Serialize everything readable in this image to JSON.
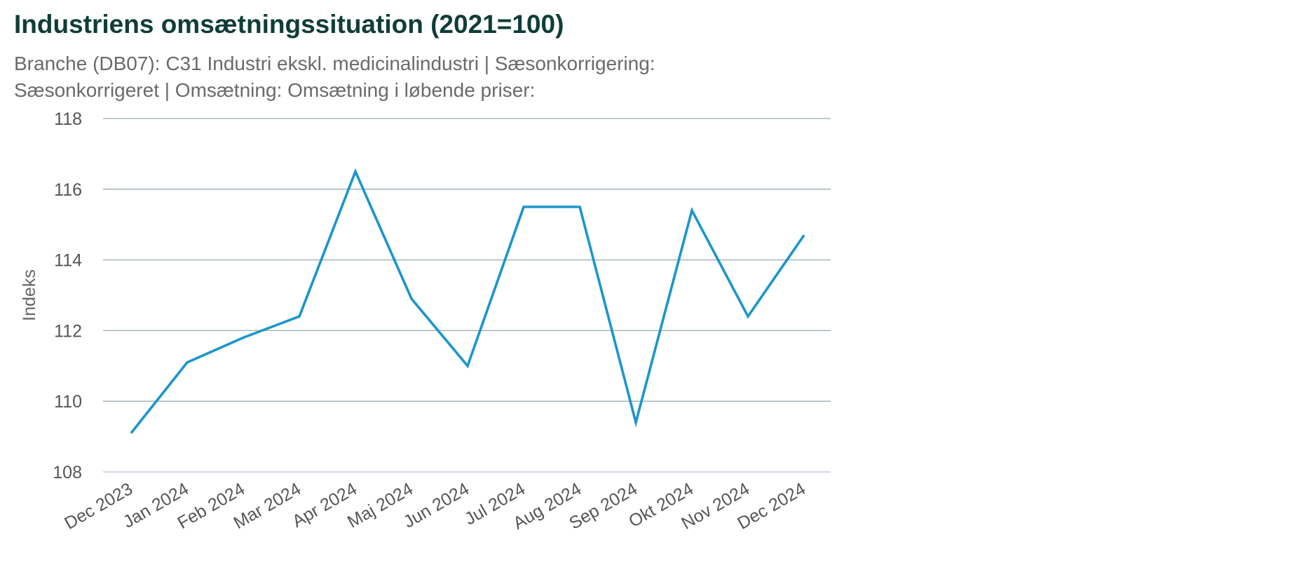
{
  "chart_data": {
    "type": "line",
    "title": "Industriens omsætningssituation (2021=100)",
    "subtitle": "Branche (DB07): C31 Industri ekskl. medicinalindustri | Sæsonkorrigering: Sæsonkorrigeret | Omsætning: Omsætning i løbende priser:",
    "xlabel": "",
    "ylabel": "Indeks",
    "ylim": [
      108,
      118
    ],
    "yticks": [
      "108",
      "110",
      "112",
      "114",
      "116",
      "118"
    ],
    "grid": true,
    "legend": "none",
    "categories": [
      "Dec 2023",
      "Jan 2024",
      "Feb 2024",
      "Mar 2024",
      "Apr 2024",
      "Maj 2024",
      "Jun 2024",
      "Jul 2024",
      "Aug 2024",
      "Sep 2024",
      "Okt 2024",
      "Nov 2024",
      "Dec 2024"
    ],
    "series": [
      {
        "values": [
          109.1,
          111.1,
          111.8,
          112.4,
          116.5,
          112.9,
          111.0,
          115.5,
          115.5,
          109.4,
          115.4,
          112.4,
          114.7
        ],
        "color": "#1b95cc"
      }
    ],
    "colors": {
      "title": "#0f3d37",
      "grid": "#9aabb0",
      "baseline": "#b8c3df",
      "line": "#1b95cc"
    }
  }
}
